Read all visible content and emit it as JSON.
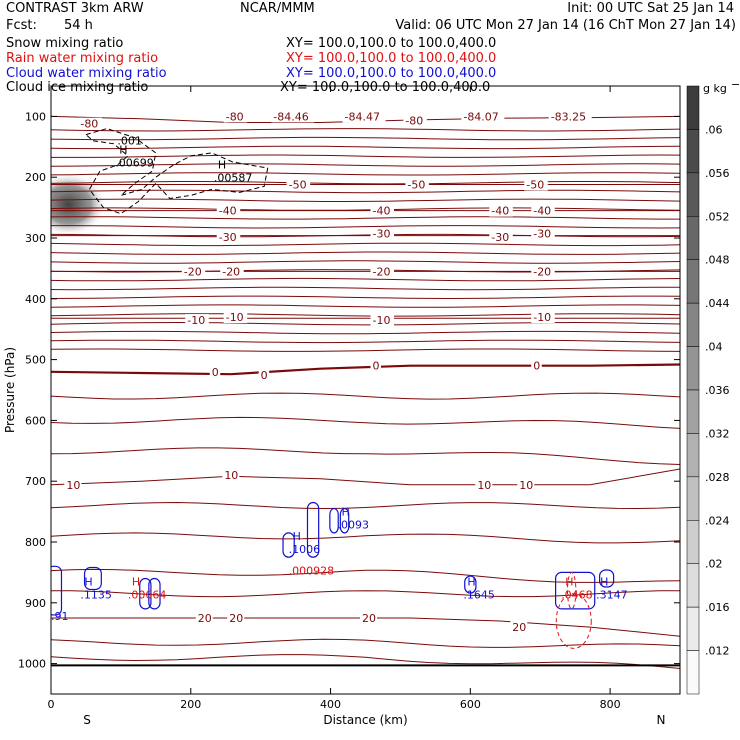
{
  "header": {
    "left_title": "CONTRAST  3km ARW",
    "center_title": "NCAR/MMM",
    "init": "Init: 00 UTC Sat 25 Jan 14",
    "fcst_label": "Fcst:",
    "fcst_value": "54 h",
    "valid": "Valid: 06 UTC Mon 27 Jan 14 (16 ChT Mon 27 Jan 14)"
  },
  "fields": [
    {
      "name": "Snow mixing ratio",
      "xy": "XY= 100.0,100.0 to 100.0,400.0",
      "color": "#000000"
    },
    {
      "name": "Rain water mixing ratio",
      "xy": "XY= 100.0,100.0 to 100.0,400.0",
      "color": "#e01010"
    },
    {
      "name": "Cloud water mixing ratio",
      "xy": "XY= 100.0,100.0 to 100.0,400.0",
      "color": "#1010d0"
    },
    {
      "name": "Cloud ice mixing ratio",
      "xy": "XY= 100.0,100.0 to 100.0,400.0",
      "color": "#000000"
    }
  ],
  "colors": {
    "temperature": "#7a0a0a",
    "rain": "#e01010",
    "cloud_water": "#1010d0",
    "ice": "#000000"
  },
  "chart_data": {
    "type": "cross-section",
    "xlabel": "Distance (km)",
    "ylabel": "Pressure (hPa)",
    "xlim": [
      0,
      900
    ],
    "ylim": [
      1050,
      50
    ],
    "xticks": [
      0,
      200,
      400,
      600,
      800
    ],
    "yticks": [
      100,
      200,
      300,
      400,
      500,
      600,
      700,
      800,
      900,
      1000
    ],
    "end_labels": {
      "left": "S",
      "right": "N"
    },
    "colorbar": {
      "unit": "g kg",
      "unit_exp": "−1",
      "ticks": [
        ".06",
        ".056",
        ".052",
        ".048",
        ".044",
        ".04",
        ".036",
        ".032",
        ".028",
        ".024",
        ".02",
        ".016",
        ".012"
      ]
    },
    "temperature_isotherm_labels": [
      {
        "x": 42,
        "p": 112,
        "text": "-80"
      },
      {
        "x": 250,
        "p": 100,
        "text": "-80"
      },
      {
        "x": 318,
        "p": 100,
        "text": "-84.46"
      },
      {
        "x": 420,
        "p": 100,
        "text": "-84.47"
      },
      {
        "x": 507,
        "p": 107,
        "text": "-80"
      },
      {
        "x": 590,
        "p": 100,
        "text": "-84.07"
      },
      {
        "x": 715,
        "p": 100,
        "text": "-83.25"
      },
      {
        "x": 340,
        "p": 212,
        "text": "-50"
      },
      {
        "x": 510,
        "p": 212,
        "text": "-50"
      },
      {
        "x": 680,
        "p": 212,
        "text": "-50"
      },
      {
        "x": 240,
        "p": 255,
        "text": "-40"
      },
      {
        "x": 460,
        "p": 255,
        "text": "-40"
      },
      {
        "x": 630,
        "p": 255,
        "text": "-40"
      },
      {
        "x": 690,
        "p": 255,
        "text": "-40"
      },
      {
        "x": 240,
        "p": 298,
        "text": "-30"
      },
      {
        "x": 460,
        "p": 293,
        "text": "-30"
      },
      {
        "x": 630,
        "p": 298,
        "text": "-30"
      },
      {
        "x": 690,
        "p": 293,
        "text": "-30"
      },
      {
        "x": 190,
        "p": 355,
        "text": "-20"
      },
      {
        "x": 245,
        "p": 355,
        "text": "-20"
      },
      {
        "x": 460,
        "p": 355,
        "text": "-20"
      },
      {
        "x": 690,
        "p": 355,
        "text": "-20"
      },
      {
        "x": 195,
        "p": 435,
        "text": "-10"
      },
      {
        "x": 250,
        "p": 430,
        "text": "-10"
      },
      {
        "x": 460,
        "p": 435,
        "text": "-10"
      },
      {
        "x": 690,
        "p": 430,
        "text": "-10"
      },
      {
        "x": 230,
        "p": 520,
        "text": "0"
      },
      {
        "x": 300,
        "p": 525,
        "text": "0"
      },
      {
        "x": 460,
        "p": 510,
        "text": "0"
      },
      {
        "x": 690,
        "p": 510,
        "text": "0"
      },
      {
        "x": 22,
        "p": 706,
        "text": "10"
      },
      {
        "x": 248,
        "p": 690,
        "text": "10"
      },
      {
        "x": 610,
        "p": 706,
        "text": "10"
      },
      {
        "x": 670,
        "p": 706,
        "text": "10"
      },
      {
        "x": 210,
        "p": 925,
        "text": "20"
      },
      {
        "x": 255,
        "p": 925,
        "text": "20"
      },
      {
        "x": 445,
        "p": 925,
        "text": "20"
      },
      {
        "x": 660,
        "p": 940,
        "text": "20"
      }
    ],
    "temperature_isotherms": [
      {
        "label": "-80",
        "p": [
          100,
          104,
          110,
          110,
          106,
          103,
          102,
          100
        ]
      },
      {
        "label": "-50",
        "p": [
          212,
          212,
          212,
          212,
          212,
          212,
          212,
          212
        ]
      },
      {
        "label": "-40",
        "p": [
          255,
          255,
          255,
          255,
          255,
          255,
          255,
          255
        ]
      },
      {
        "label": "-30",
        "p": [
          296,
          296,
          296,
          296,
          296,
          296,
          296,
          296
        ]
      },
      {
        "label": "-20",
        "p": [
          355,
          355,
          355,
          355,
          355,
          355,
          355,
          355
        ]
      },
      {
        "label": "-10",
        "p": [
          432,
          432,
          432,
          432,
          432,
          432,
          432,
          432
        ]
      },
      {
        "label": "0",
        "p": [
          520,
          522,
          524,
          515,
          510,
          510,
          510,
          508
        ]
      },
      {
        "label": "10",
        "p": [
          706,
          700,
          692,
          696,
          706,
          706,
          706,
          680
        ]
      },
      {
        "label": "20",
        "p": [
          925,
          925,
          925,
          925,
          925,
          930,
          940,
          955
        ]
      }
    ],
    "extrema_labels": [
      {
        "x": 92,
        "p": 164,
        "kind": "H",
        "value": ".00699",
        "color": "#000000"
      },
      {
        "x": 233,
        "p": 189,
        "kind": "H",
        "value": ".00587",
        "color": "#000000"
      },
      {
        "x": 95,
        "p": 128,
        "kind": "",
        "value": ".001",
        "color": "#000000"
      },
      {
        "x": 42,
        "p": 875,
        "kind": "H",
        "value": ".1135",
        "color": "#1010d0"
      },
      {
        "x": 110,
        "p": 875,
        "kind": "H",
        "value": ".00664",
        "color": "#e01010"
      },
      {
        "x": 340,
        "p": 800,
        "kind": "H",
        "value": ".1006",
        "color": "#1010d0"
      },
      {
        "x": 340,
        "p": 835,
        "kind": "",
        "value": ".000928",
        "color": "#e01010"
      },
      {
        "x": 410,
        "p": 760,
        "kind": "H",
        "value": ".0093",
        "color": "#1010d0"
      },
      {
        "x": 590,
        "p": 875,
        "kind": "H",
        "value": ".1645",
        "color": "#1010d0"
      },
      {
        "x": 730,
        "p": 875,
        "kind": "H",
        "value": ".0468",
        "color": "#e01010"
      },
      {
        "x": 780,
        "p": 875,
        "kind": "H",
        "value": ".3147",
        "color": "#1010d0"
      },
      {
        "x": 0,
        "p": 910,
        "kind": "",
        "value": ".91",
        "color": "#1010d0"
      }
    ]
  }
}
